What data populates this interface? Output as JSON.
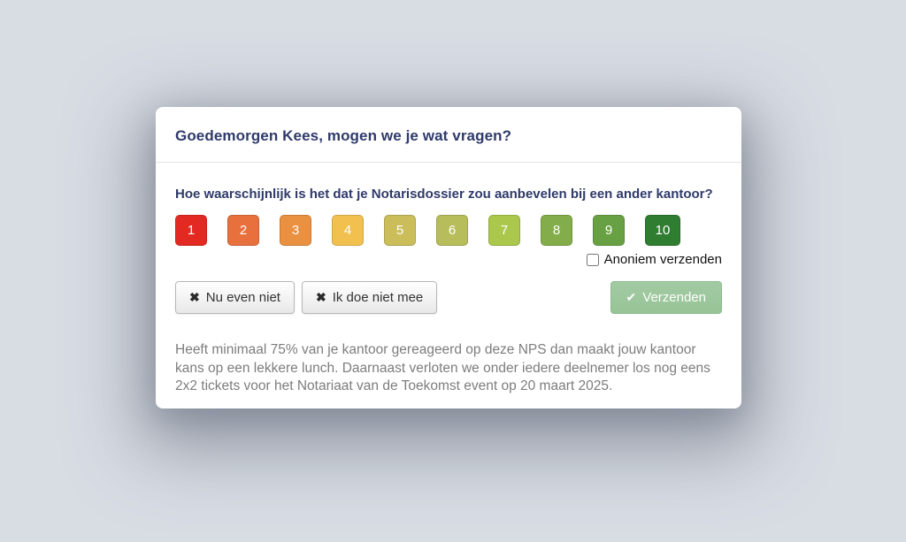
{
  "dialog": {
    "title": "Goedemorgen Kees, mogen we je wat vragen?",
    "question": "Hoe waarschijnlijk is het dat je Notarisdossier zou aanbevelen bij een ander kantoor?"
  },
  "ratings": {
    "values": [
      "1",
      "2",
      "3",
      "4",
      "5",
      "6",
      "7",
      "8",
      "9",
      "10"
    ],
    "colors": [
      "#e32a22",
      "#e8703c",
      "#ea9041",
      "#f2c04f",
      "#cabd5a",
      "#b7bd5b",
      "#abc84c",
      "#83ad4a",
      "#68a144",
      "#2f7d31"
    ]
  },
  "anonymous": {
    "label": "Anoniem verzenden",
    "checked": false
  },
  "actions": {
    "dismiss_icon": "✖",
    "dismiss_label": "Nu even niet",
    "optout_icon": "✖",
    "optout_label": "Ik doe niet mee",
    "submit_icon": "✔",
    "submit_label": "Verzenden"
  },
  "footer": {
    "text": "Heeft minimaal 75% van je kantoor gereageerd op deze NPS dan maakt jouw kantoor kans op een lekkere lunch. Daarnaast verloten we onder iedere deelnemer los nog eens 2x2 tickets voor het Notariaat van de Toekomst event op 20 maart 2025."
  },
  "colors": {
    "page_bg": "#d8dce3",
    "title_text": "#2f3a6a",
    "submit_bg": "#97c497",
    "submit_bg_top": "#a3caa3",
    "submit_border": "#8bbb8b",
    "footer_text": "#7d7d7f"
  }
}
